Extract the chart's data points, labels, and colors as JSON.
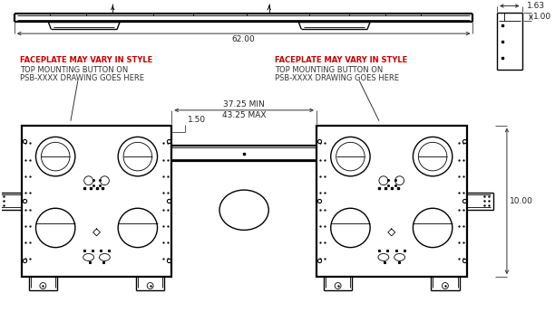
{
  "bg_color": "#ffffff",
  "line_color": "#000000",
  "red_color": "#cc0000",
  "annotations": {
    "dim_62": "62.00",
    "dim_1_63": "1.63",
    "dim_1_00": "1.00",
    "dim_37_25": "37.25 MIN",
    "dim_43_25": "43.25 MAX",
    "dim_1_50": "1.50",
    "dim_10": "10.00",
    "red_text_left_1": "FACEPLATE MAY VARY IN STYLE",
    "red_text_left_2": "TOP MOUNTING BUTTON ON",
    "red_text_left_3": "PSB-XXXX DRAWING GOES HERE",
    "red_text_right_1": "FACEPLATE MAY VARY IN STYLE",
    "red_text_right_2": "TOP MOUNTING BUTTON ON",
    "red_text_right_3": "PSB-XXXX DRAWING GOES HERE"
  }
}
